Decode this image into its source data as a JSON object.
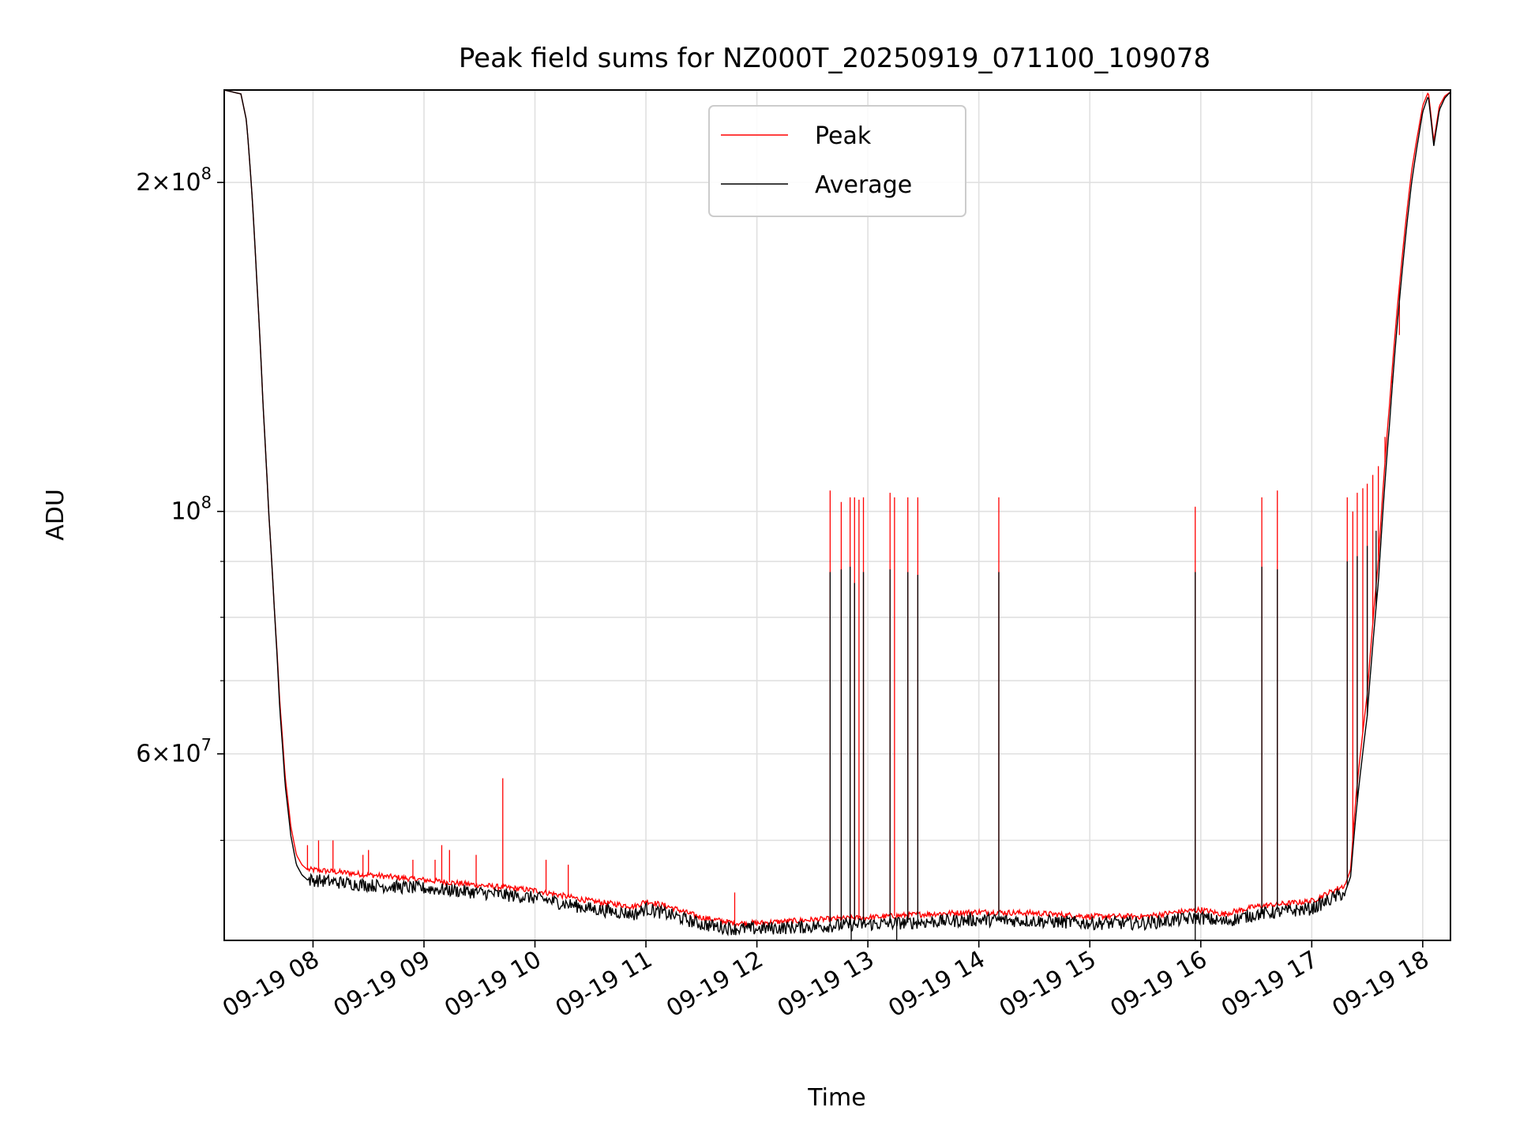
{
  "chart_data": {
    "type": "line",
    "title": "Peak field sums for NZ000T_20250919_071100_109078",
    "xlabel": "Time",
    "ylabel": "ADU",
    "yscale": "log",
    "xlim": [
      7.2,
      18.25
    ],
    "ylim": [
      40500000,
      243000000
    ],
    "grid": true,
    "legend": "upper center",
    "x_ticks": [
      {
        "value": 8,
        "label": "09-19 08"
      },
      {
        "value": 9,
        "label": "09-19 09"
      },
      {
        "value": 10,
        "label": "09-19 10"
      },
      {
        "value": 11,
        "label": "09-19 11"
      },
      {
        "value": 12,
        "label": "09-19 12"
      },
      {
        "value": 13,
        "label": "09-19 13"
      },
      {
        "value": 14,
        "label": "09-19 14"
      },
      {
        "value": 15,
        "label": "09-19 15"
      },
      {
        "value": 16,
        "label": "09-19 16"
      },
      {
        "value": 17,
        "label": "09-19 17"
      },
      {
        "value": 18,
        "label": "09-19 18"
      }
    ],
    "y_major_ticks": [
      {
        "value": 60000000,
        "base": "6",
        "exp": "7"
      },
      {
        "value": 100000000,
        "base": "",
        "exp": "8"
      },
      {
        "value": 200000000,
        "base": "2",
        "exp": "8"
      }
    ],
    "y_minor_ticks": [
      50000000,
      70000000,
      80000000,
      90000000
    ],
    "series": [
      {
        "name": "Peak",
        "color": "#ff0000",
        "x": [
          7.2,
          7.35,
          7.4,
          7.45,
          7.5,
          7.55,
          7.6,
          7.65,
          7.7,
          7.75,
          7.8,
          7.85,
          7.9,
          7.95,
          8.0,
          8.5,
          9.0,
          9.5,
          10.0,
          10.5,
          10.9,
          11.0,
          11.2,
          11.5,
          11.8,
          12.0,
          12.5,
          13.0,
          13.5,
          14.0,
          14.5,
          15.0,
          15.5,
          15.8,
          16.0,
          16.2,
          16.5,
          16.8,
          17.0,
          17.1,
          17.2,
          17.3,
          17.35,
          17.4,
          17.5,
          17.6,
          17.7,
          17.8,
          17.9,
          18.0,
          18.05,
          18.1,
          18.15,
          18.2,
          18.25
        ],
        "y": [
          243000000,
          241000000,
          228000000,
          195000000,
          158000000,
          125000000,
          100000000,
          82000000,
          67000000,
          57000000,
          51500000,
          48500000,
          47500000,
          47000000,
          47000000,
          46500000,
          46000000,
          45500000,
          45000000,
          44000000,
          43500000,
          44000000,
          43500000,
          42500000,
          42000000,
          42000000,
          42300000,
          42500000,
          42800000,
          43000000,
          42900000,
          42600000,
          42600000,
          43000000,
          43200000,
          42800000,
          43500000,
          43800000,
          44000000,
          44500000,
          45000000,
          45500000,
          47000000,
          55000000,
          68000000,
          90000000,
          125000000,
          165000000,
          205000000,
          235000000,
          242000000,
          218000000,
          235000000,
          240000000,
          242000000
        ],
        "spikes": [
          {
            "x": 7.95,
            "y": 49500000
          },
          {
            "x": 8.05,
            "y": 50000000
          },
          {
            "x": 8.18,
            "y": 50000000
          },
          {
            "x": 8.45,
            "y": 48500000
          },
          {
            "x": 8.5,
            "y": 49000000
          },
          {
            "x": 8.9,
            "y": 48000000
          },
          {
            "x": 9.1,
            "y": 48000000
          },
          {
            "x": 9.16,
            "y": 49500000
          },
          {
            "x": 9.23,
            "y": 49000000
          },
          {
            "x": 9.47,
            "y": 48500000
          },
          {
            "x": 9.71,
            "y": 57000000
          },
          {
            "x": 10.1,
            "y": 48000000
          },
          {
            "x": 10.3,
            "y": 47500000
          },
          {
            "x": 11.8,
            "y": 44800000
          },
          {
            "x": 12.66,
            "y": 104500000
          },
          {
            "x": 12.76,
            "y": 102000000
          },
          {
            "x": 12.84,
            "y": 103000000
          },
          {
            "x": 12.88,
            "y": 103000000
          },
          {
            "x": 12.92,
            "y": 102500000
          },
          {
            "x": 12.96,
            "y": 103000000
          },
          {
            "x": 13.2,
            "y": 104000000
          },
          {
            "x": 13.24,
            "y": 103000000
          },
          {
            "x": 13.36,
            "y": 103000000
          },
          {
            "x": 13.45,
            "y": 103000000
          },
          {
            "x": 14.18,
            "y": 103000000
          },
          {
            "x": 15.95,
            "y": 101000000
          },
          {
            "x": 16.55,
            "y": 103000000
          },
          {
            "x": 16.69,
            "y": 104500000
          },
          {
            "x": 17.32,
            "y": 103000000
          },
          {
            "x": 17.37,
            "y": 100000000
          },
          {
            "x": 17.41,
            "y": 104000000
          },
          {
            "x": 17.46,
            "y": 105000000
          },
          {
            "x": 17.5,
            "y": 106000000
          },
          {
            "x": 17.55,
            "y": 108000000
          },
          {
            "x": 17.6,
            "y": 110000000
          },
          {
            "x": 17.66,
            "y": 117000000
          },
          {
            "x": 17.72,
            "y": 131000000
          },
          {
            "x": 17.79,
            "y": 145000000
          }
        ]
      },
      {
        "name": "Average",
        "color": "#000000",
        "x": [
          7.2,
          7.35,
          7.4,
          7.45,
          7.5,
          7.55,
          7.6,
          7.65,
          7.7,
          7.75,
          7.8,
          7.85,
          7.9,
          7.95,
          8.0,
          8.5,
          9.0,
          9.5,
          10.0,
          10.5,
          10.9,
          11.0,
          11.2,
          11.5,
          11.8,
          12.0,
          12.5,
          13.0,
          13.5,
          14.0,
          14.5,
          15.0,
          15.5,
          15.8,
          16.0,
          16.2,
          16.5,
          16.8,
          17.0,
          17.1,
          17.2,
          17.3,
          17.35,
          17.4,
          17.5,
          17.6,
          17.7,
          17.8,
          17.9,
          18.0,
          18.05,
          18.1,
          18.15,
          18.2,
          18.25
        ],
        "y": [
          243000000,
          241000000,
          228000000,
          195000000,
          158000000,
          125000000,
          100000000,
          82000000,
          66000000,
          56000000,
          50500000,
          47500000,
          46500000,
          46000000,
          46000000,
          45500000,
          45200000,
          44800000,
          44300000,
          43300000,
          42800000,
          43300000,
          42800000,
          41900000,
          41500000,
          41500000,
          41700000,
          41900000,
          42100000,
          42300000,
          42200000,
          42000000,
          42000000,
          42300000,
          42500000,
          42100000,
          42800000,
          43100000,
          43300000,
          43800000,
          44300000,
          44800000,
          46300000,
          53000000,
          65000000,
          86000000,
          120000000,
          160000000,
          200000000,
          232000000,
          240000000,
          216000000,
          233000000,
          239000000,
          242000000
        ],
        "spikes": [
          {
            "x": 12.66,
            "y": 88000000
          },
          {
            "x": 12.76,
            "y": 88500000
          },
          {
            "x": 12.84,
            "y": 89000000
          },
          {
            "x": 12.88,
            "y": 86000000
          },
          {
            "x": 12.96,
            "y": 88000000
          },
          {
            "x": 13.2,
            "y": 88500000
          },
          {
            "x": 13.36,
            "y": 88000000
          },
          {
            "x": 13.45,
            "y": 87500000
          },
          {
            "x": 14.18,
            "y": 88000000
          },
          {
            "x": 15.95,
            "y": 88000000
          },
          {
            "x": 16.55,
            "y": 89000000
          },
          {
            "x": 16.69,
            "y": 88500000
          },
          {
            "x": 17.32,
            "y": 90000000
          },
          {
            "x": 17.41,
            "y": 91000000
          },
          {
            "x": 17.5,
            "y": 93000000
          },
          {
            "x": 17.58,
            "y": 96000000
          }
        ],
        "dips": [
          {
            "x": 12.85,
            "y": 40500000
          },
          {
            "x": 13.26,
            "y": 40500000
          },
          {
            "x": 15.95,
            "y": 40500000
          }
        ]
      }
    ]
  }
}
